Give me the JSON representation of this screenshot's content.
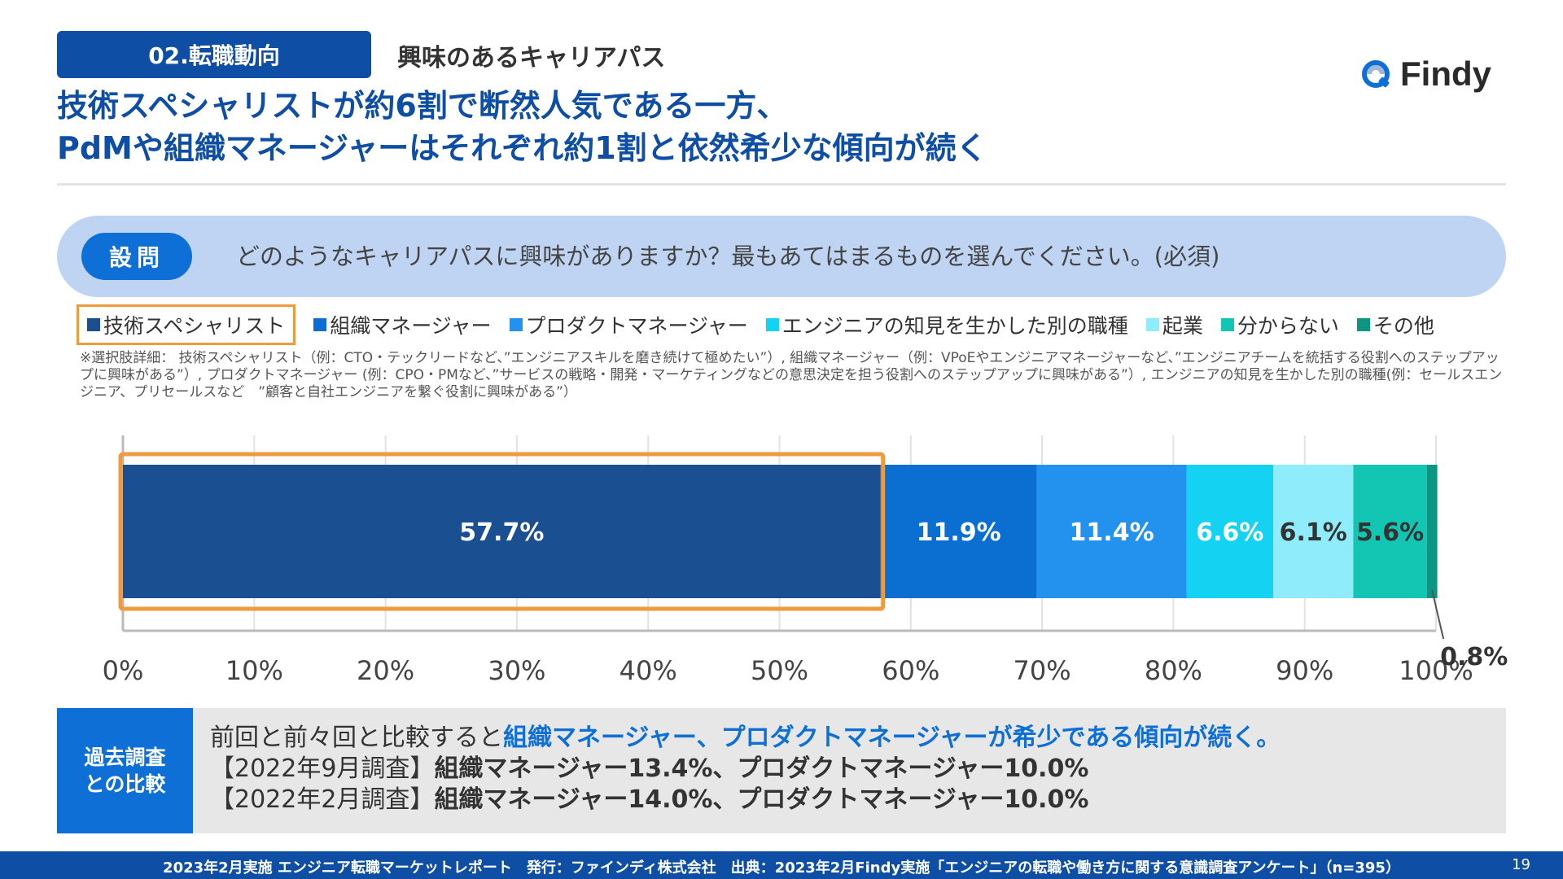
{
  "header": {
    "section_tag": "02.転職動向",
    "section_subtitle": "興味のあるキャリアパス",
    "logo_text": "Findy",
    "headline_line1": "技術スペシャリストが約6割で断然人気である一方、",
    "headline_line2": "PdMや組織マネージャーはそれぞれ約1割と依然希少な傾向が続く"
  },
  "question": {
    "badge": "設問",
    "text": "どのようなキャリアパスに興味がありますか？最もあてはまるものを選んでください。(必須)"
  },
  "legend": [
    {
      "label": "技術スペシャリスト",
      "color": "#1a4f91"
    },
    {
      "label": "組織マネージャー",
      "color": "#0a6fd1"
    },
    {
      "label": "プロダクトマネージャー",
      "color": "#2292ee"
    },
    {
      "label": "エンジニアの知見を生かした別の職種",
      "color": "#14d2f2"
    },
    {
      "label": "起業",
      "color": "#8fecfb"
    },
    {
      "label": "分からない",
      "color": "#13c6b4"
    },
    {
      "label": "その他",
      "color": "#0c9580"
    }
  ],
  "note": "※選択肢詳細： 技術スペシャリスト（例：CTO・テックリードなど、”エンジニアスキルを磨き続けて極めたい”）, 組織マネージャー（例：VPoEやエンジニアマネージャーなど、”エンジニアチームを統括する役割へのステップアップに興味がある”）, プロダクトマネージャー (例：CPO・PMなど、”サービスの戦略・開発・マーケティングなどの意思決定を担う役割へのステップアップに興味がある”）, エンジニアの知見を生かした別の職種(例：セールスエンジニア、プリセールスなど　”顧客と自社エンジニアを繋ぐ役割に興味がある”）",
  "chart_data": {
    "type": "bar",
    "orientation": "horizontal-stacked-100",
    "categories": [
      "技術スペシャリスト",
      "組織マネージャー",
      "プロダクトマネージャー",
      "エンジニアの知見を生かした別の職種",
      "起業",
      "分からない",
      "その他"
    ],
    "values": [
      57.7,
      11.9,
      11.4,
      6.6,
      6.1,
      5.6,
      0.8
    ],
    "labels": [
      "57.7%",
      "11.9%",
      "11.4%",
      "6.6%",
      "6.1%",
      "5.6%",
      "0.8%"
    ],
    "colors": [
      "#1a4f91",
      "#0a6fd1",
      "#2292ee",
      "#14d2f2",
      "#8fecfb",
      "#13c6b4",
      "#0c9580"
    ],
    "label_colors": [
      "#ffffff",
      "#ffffff",
      "#ffffff",
      "#ffffff",
      "#333333",
      "#333333",
      "#333333"
    ],
    "x_ticks": [
      "0%",
      "10%",
      "20%",
      "30%",
      "40%",
      "50%",
      "60%",
      "70%",
      "80%",
      "90%",
      "100%"
    ],
    "xlim": [
      0,
      100
    ],
    "grid": true,
    "highlight_series_index": 0,
    "highlight_color": "#f09a3e"
  },
  "summary": {
    "label_line1": "過去調査",
    "label_line2": "との比較",
    "line1_plain": "前回と前々回と比較すると",
    "line1_highlight": "組織マネージャー、プロダクトマネージャーが希少である傾向が続く。",
    "line2_prefix": "【2022年9月調査】",
    "line2_body": "組織マネージャー13.4%、プロダクトマネージャー10.0%",
    "line3_prefix": "【2022年2月調査】",
    "line3_body": "組織マネージャー14.0%、プロダクトマネージャー10.0%"
  },
  "footer": {
    "text": "2023年2月実施 エンジニア転職マーケットレポート　発行：ファインディ株式会社　出典：2023年2月Findy実施「エンジニアの転職や働き方に関する意識調査アンケート」（n=395）",
    "page": "19"
  }
}
